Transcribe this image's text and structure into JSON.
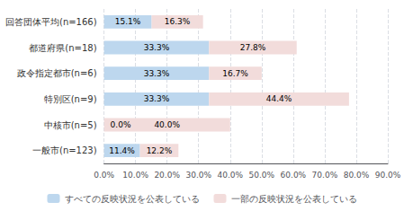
{
  "chart_data": {
    "type": "bar",
    "orientation": "horizontal",
    "stacked": true,
    "categories": [
      "回答団体平均(n=166)",
      "都道府県(n=18)",
      "政令指定都市(n=6)",
      "特別区(n=9)",
      "中核市(n=5)",
      "一般市(n=123)"
    ],
    "series": [
      {
        "name": "すべての反映状況を公表している",
        "color": "#BDD7EE",
        "values": [
          15.1,
          33.3,
          33.3,
          33.3,
          0.0,
          11.4
        ],
        "value_labels": [
          "15.1%",
          "33.3%",
          "33.3%",
          "33.3%",
          "0.0%",
          "11.4%"
        ]
      },
      {
        "name": "一部の反映状況を公表している",
        "color": "#F2DCDB",
        "values": [
          16.3,
          27.8,
          16.7,
          44.4,
          40.0,
          12.2
        ],
        "value_labels": [
          "16.3%",
          "27.8%",
          "16.7%",
          "44.4%",
          "40.0%",
          "12.2%"
        ]
      }
    ],
    "xlim": [
      0,
      90
    ],
    "xticks": [
      {
        "value": 0,
        "label": "0.0%"
      },
      {
        "value": 10,
        "label": "10.0%"
      },
      {
        "value": 20,
        "label": "20.0%"
      },
      {
        "value": 30,
        "label": "30.0%"
      },
      {
        "value": 40,
        "label": "40.0%"
      },
      {
        "value": 50,
        "label": "50.0%"
      },
      {
        "value": 60,
        "label": "60.0%"
      },
      {
        "value": 70,
        "label": "70.0%"
      },
      {
        "value": 80,
        "label": "80.0%"
      },
      {
        "value": 90,
        "label": "90.0%"
      }
    ],
    "grid": true,
    "data_labels": true,
    "legend": "bottom"
  }
}
